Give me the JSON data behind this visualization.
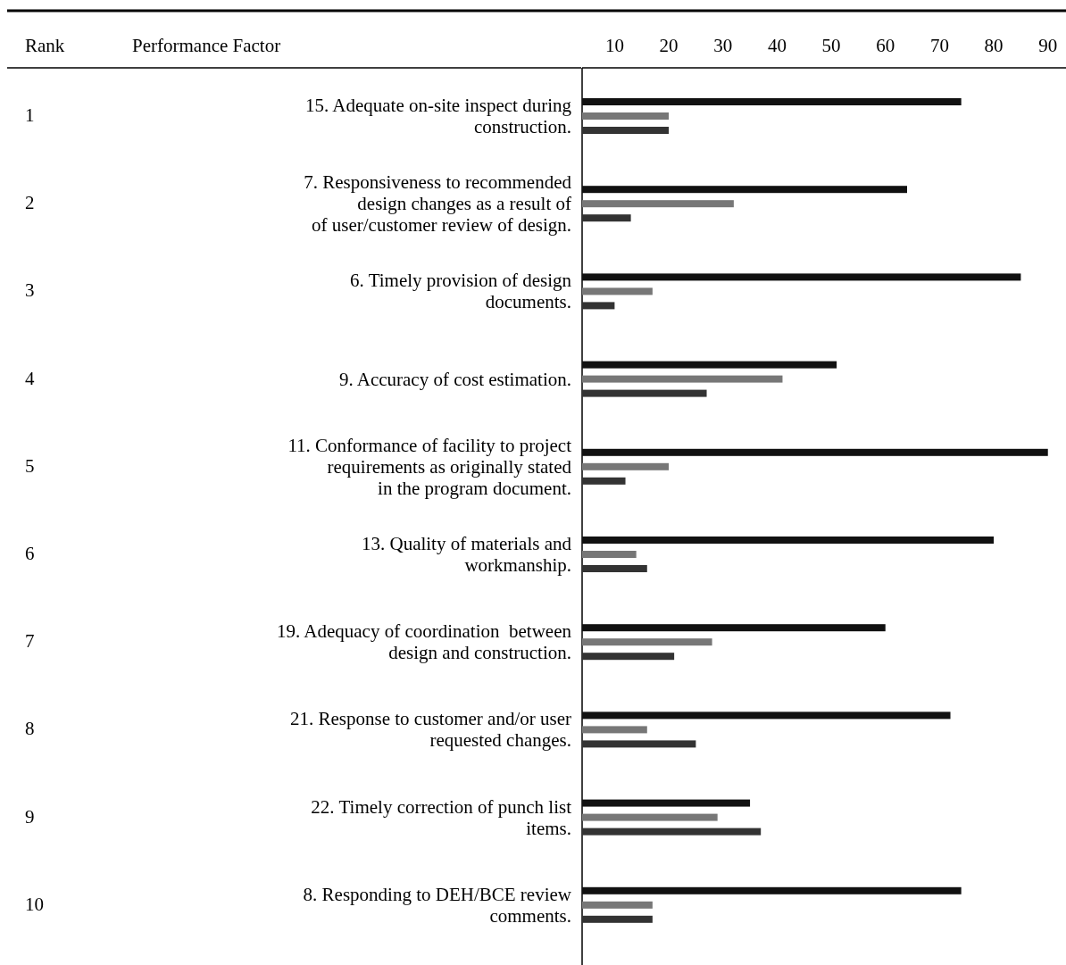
{
  "chart_data": {
    "type": "bar",
    "orientation": "horizontal",
    "categories": [
      "15. Adequate on-site inspect during\nconstruction.",
      "7. Responsiveness to recommended\ndesign changes as a result of\nof user/customer review of design.",
      "6. Timely provision of design\ndocuments.",
      "9. Accuracy of cost estimation.",
      "11. Conformance of facility to project\nrequirements as originally stated\nin the program document.",
      "13. Quality of materials and\nworkmanship.",
      "19. Adequacy of coordination  between\ndesign and construction.",
      "21. Response to customer and/or user\nrequested changes.",
      "22. Timely correction of punch list\nitems.",
      "8. Responding to DEH/BCE review\ncomments."
    ],
    "series": [
      {
        "color": "#111111",
        "values": [
          74,
          64,
          85,
          51,
          90,
          80,
          60,
          72,
          35,
          74
        ]
      },
      {
        "color": "#777777",
        "values": [
          20,
          32,
          17,
          41,
          20,
          14,
          28,
          16,
          29,
          17
        ]
      },
      {
        "color": "#333333",
        "values": [
          20,
          13,
          10,
          27,
          12,
          16,
          21,
          25,
          37,
          17
        ]
      }
    ],
    "xlim": [
      4,
      94
    ],
    "xticks": [
      10,
      20,
      30,
      40,
      50,
      60,
      70,
      80,
      90
    ],
    "annotations": [
      "Rank",
      "Performance Factor",
      "1",
      "2",
      "3",
      "4",
      "5",
      "6",
      "7",
      "8",
      "9",
      "10"
    ]
  }
}
